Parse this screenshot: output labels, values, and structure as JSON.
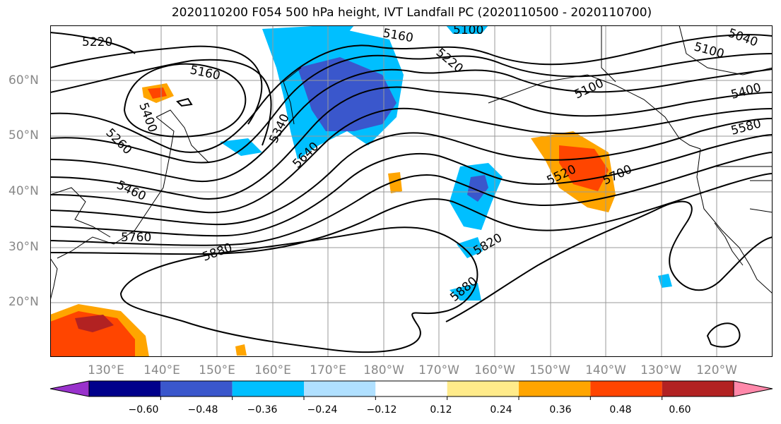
{
  "title": "2020110200 F054 500 hPa height, IVT Landfall PC (2020110500 - 2020110700)",
  "lat_labels": [
    "60°N",
    "50°N",
    "40°N",
    "30°N",
    "20°N"
  ],
  "lon_labels": [
    "130°E",
    "140°E",
    "150°E",
    "160°E",
    "170°E",
    "180°W",
    "170°W",
    "160°W",
    "150°W",
    "140°W",
    "130°W",
    "120°W"
  ],
  "contour_labels": [
    "5220",
    "5160",
    "5400",
    "5260",
    "5460",
    "5760",
    "5880",
    "5340",
    "5640",
    "5160",
    "5220",
    "5100",
    "5040",
    "5100",
    "5100",
    "5400",
    "5580",
    "5520",
    "5700",
    "5820",
    "5880"
  ],
  "colorbar": {
    "ticks": [
      "−0.60",
      "−0.48",
      "−0.36",
      "−0.24",
      "−0.12",
      "0.12",
      "0.24",
      "0.36",
      "0.48",
      "0.60"
    ],
    "colors": [
      "#9932CC",
      "#00008B",
      "#3A57CC",
      "#00BFFF",
      "#B0E0FF",
      "#FFFFFF",
      "#FFEB8A",
      "#FFA500",
      "#FF4500",
      "#B22222",
      "#FF88AA"
    ]
  }
}
